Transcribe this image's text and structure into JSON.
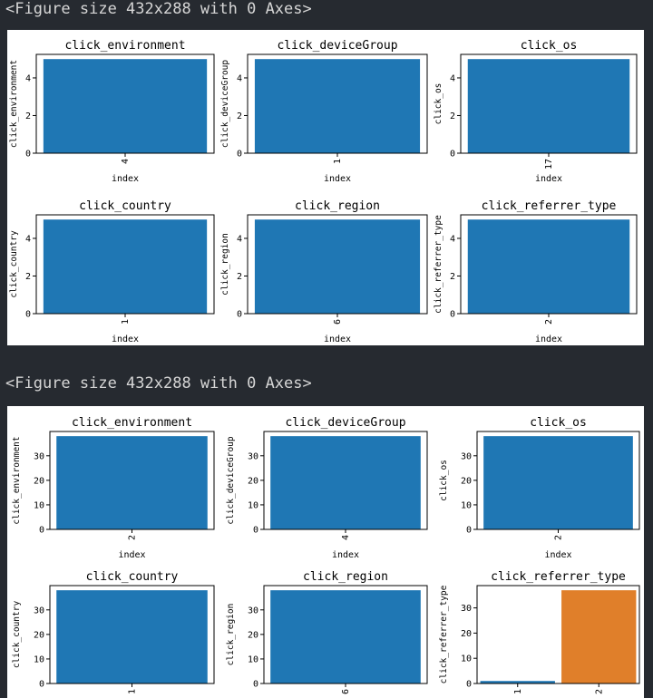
{
  "figures": [
    {
      "header": "<Figure size 432x288 with 0 Axes>",
      "chart_data": [
        {
          "type": "bar",
          "title": "click_environment",
          "xlabel": "index",
          "ylabel": "click_environment",
          "categories": [
            "4"
          ],
          "values": [
            5
          ],
          "ylim": [
            0,
            5.25
          ],
          "yticks": [
            0,
            2,
            4
          ],
          "colors": [
            "#1f77b4"
          ]
        },
        {
          "type": "bar",
          "title": "click_deviceGroup",
          "xlabel": "index",
          "ylabel": "click_deviceGroup",
          "categories": [
            "1"
          ],
          "values": [
            5
          ],
          "ylim": [
            0,
            5.25
          ],
          "yticks": [
            0,
            2,
            4
          ],
          "colors": [
            "#1f77b4"
          ]
        },
        {
          "type": "bar",
          "title": "click_os",
          "xlabel": "index",
          "ylabel": "click_os",
          "categories": [
            "17"
          ],
          "values": [
            5
          ],
          "ylim": [
            0,
            5.25
          ],
          "yticks": [
            0,
            2,
            4
          ],
          "colors": [
            "#1f77b4"
          ]
        },
        {
          "type": "bar",
          "title": "click_country",
          "xlabel": "index",
          "ylabel": "click_country",
          "categories": [
            "1"
          ],
          "values": [
            5
          ],
          "ylim": [
            0,
            5.25
          ],
          "yticks": [
            0,
            2,
            4
          ],
          "colors": [
            "#1f77b4"
          ]
        },
        {
          "type": "bar",
          "title": "click_region",
          "xlabel": "index",
          "ylabel": "click_region",
          "categories": [
            "6"
          ],
          "values": [
            5
          ],
          "ylim": [
            0,
            5.25
          ],
          "yticks": [
            0,
            2,
            4
          ],
          "colors": [
            "#1f77b4"
          ]
        },
        {
          "type": "bar",
          "title": "click_referrer_type",
          "xlabel": "index",
          "ylabel": "click_referrer_type",
          "categories": [
            "2"
          ],
          "values": [
            5
          ],
          "ylim": [
            0,
            5.25
          ],
          "yticks": [
            0,
            2,
            4
          ],
          "colors": [
            "#1f77b4"
          ]
        }
      ]
    },
    {
      "header": "<Figure size 432x288 with 0 Axes>",
      "chart_data": [
        {
          "type": "bar",
          "title": "click_environment",
          "xlabel": "index",
          "ylabel": "click_environment",
          "categories": [
            "2"
          ],
          "values": [
            38
          ],
          "ylim": [
            0,
            39.9
          ],
          "yticks": [
            0,
            10,
            20,
            30
          ],
          "colors": [
            "#1f77b4"
          ]
        },
        {
          "type": "bar",
          "title": "click_deviceGroup",
          "xlabel": "index",
          "ylabel": "click_deviceGroup",
          "categories": [
            "4"
          ],
          "values": [
            38
          ],
          "ylim": [
            0,
            39.9
          ],
          "yticks": [
            0,
            10,
            20,
            30
          ],
          "colors": [
            "#1f77b4"
          ]
        },
        {
          "type": "bar",
          "title": "click_os",
          "xlabel": "index",
          "ylabel": "click_os",
          "categories": [
            "2"
          ],
          "values": [
            38
          ],
          "ylim": [
            0,
            39.9
          ],
          "yticks": [
            0,
            10,
            20,
            30
          ],
          "colors": [
            "#1f77b4"
          ]
        },
        {
          "type": "bar",
          "title": "click_country",
          "xlabel": "",
          "ylabel": "click_country",
          "categories": [
            "1"
          ],
          "values": [
            38
          ],
          "ylim": [
            0,
            39.9
          ],
          "yticks": [
            0,
            10,
            20,
            30
          ],
          "colors": [
            "#1f77b4"
          ]
        },
        {
          "type": "bar",
          "title": "click_region",
          "xlabel": "",
          "ylabel": "click_region",
          "categories": [
            "6"
          ],
          "values": [
            38
          ],
          "ylim": [
            0,
            39.9
          ],
          "yticks": [
            0,
            10,
            20,
            30
          ],
          "colors": [
            "#1f77b4"
          ]
        },
        {
          "type": "bar",
          "title": "click_referrer_type",
          "xlabel": "",
          "ylabel": "click_referrer_type",
          "categories": [
            "1",
            "2"
          ],
          "values": [
            1,
            37
          ],
          "ylim": [
            0,
            38.85
          ],
          "yticks": [
            0,
            10,
            20,
            30
          ],
          "colors": [
            "#1f77b4",
            "#e07f2a"
          ]
        }
      ]
    }
  ]
}
